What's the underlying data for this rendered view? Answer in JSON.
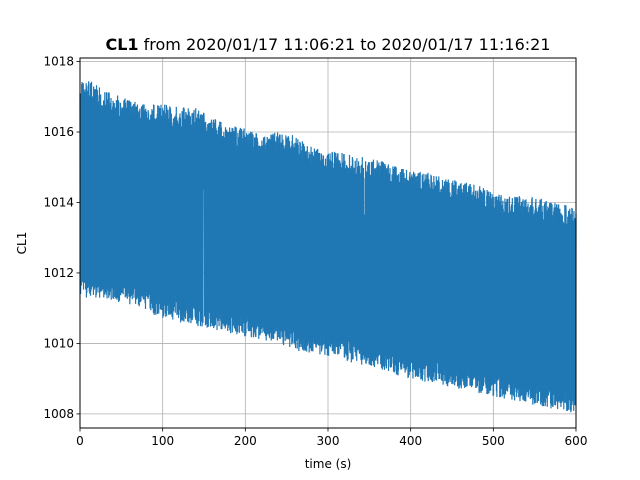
{
  "chart_data": {
    "type": "line",
    "title_bold": "CL1",
    "title_rest": " from 2020/01/17 11:06:21 to 2020/01/17 11:16:21",
    "xlabel": "time (s)",
    "ylabel": "CL1",
    "xlim": [
      0,
      600
    ],
    "ylim": [
      1007.6,
      1018.1
    ],
    "xticks": [
      0,
      100,
      200,
      300,
      400,
      500,
      600
    ],
    "yticks": [
      1008,
      1010,
      1012,
      1014,
      1016,
      1018
    ],
    "grid": true,
    "series_color": "#1f77b4",
    "envelope": {
      "x": [
        0,
        20,
        40,
        60,
        80,
        100,
        120,
        140,
        160,
        180,
        200,
        220,
        240,
        260,
        280,
        300,
        320,
        340,
        360,
        380,
        400,
        420,
        440,
        460,
        480,
        500,
        520,
        540,
        560,
        580,
        600
      ],
      "upper": [
        1017.5,
        1017.4,
        1017.1,
        1016.9,
        1016.8,
        1016.8,
        1016.7,
        1016.7,
        1016.4,
        1016.2,
        1016.1,
        1015.9,
        1016.0,
        1015.9,
        1015.6,
        1015.5,
        1015.4,
        1015.3,
        1015.2,
        1015.1,
        1014.9,
        1014.9,
        1014.7,
        1014.6,
        1014.5,
        1014.3,
        1014.2,
        1014.2,
        1014.1,
        1014.0,
        1013.8
      ],
      "lower": [
        1011.3,
        1011.3,
        1011.2,
        1011.1,
        1010.9,
        1010.7,
        1010.6,
        1010.5,
        1010.4,
        1010.3,
        1010.2,
        1010.1,
        1010.0,
        1009.8,
        1009.7,
        1009.6,
        1009.5,
        1009.4,
        1009.3,
        1009.1,
        1009.0,
        1008.9,
        1008.8,
        1008.7,
        1008.6,
        1008.5,
        1008.4,
        1008.3,
        1008.2,
        1008.1,
        1008.0
      ]
    }
  }
}
